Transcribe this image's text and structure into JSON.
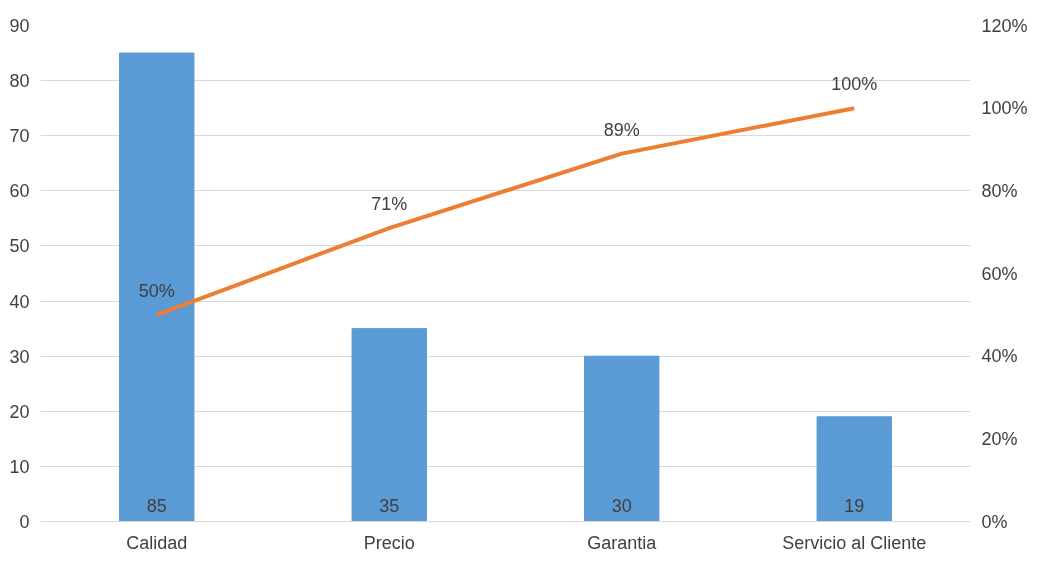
{
  "chart_data": {
    "type": "bar",
    "categories": [
      "Calidad",
      "Precio",
      "Garantia",
      "Servicio al Cliente"
    ],
    "series": [
      {
        "color": "#5b9bd5",
        "values": [
          85,
          35,
          30,
          19
        ],
        "value_labels": [
          "85",
          "35",
          "30",
          "19"
        ]
      },
      {
        "type": "line",
        "axis": "y2",
        "color": "#ed7d31",
        "values": [
          50,
          71,
          89,
          100
        ],
        "value_labels": [
          "50%",
          "71%",
          "89%",
          "100%"
        ]
      }
    ],
    "ylim": [
      0,
      90
    ],
    "yticks": [
      0,
      10,
      20,
      30,
      40,
      50,
      60,
      70,
      80,
      90
    ],
    "y2lim": [
      0,
      120
    ],
    "y2ticks": [
      {
        "value": 0,
        "label": "0%"
      },
      {
        "value": 20,
        "label": "20%"
      },
      {
        "value": 40,
        "label": "40%"
      },
      {
        "value": 60,
        "label": "60%"
      },
      {
        "value": 80,
        "label": "80%"
      },
      {
        "value": 100,
        "label": "100%"
      },
      {
        "value": 120,
        "label": "120%"
      }
    ],
    "grid": "y"
  }
}
